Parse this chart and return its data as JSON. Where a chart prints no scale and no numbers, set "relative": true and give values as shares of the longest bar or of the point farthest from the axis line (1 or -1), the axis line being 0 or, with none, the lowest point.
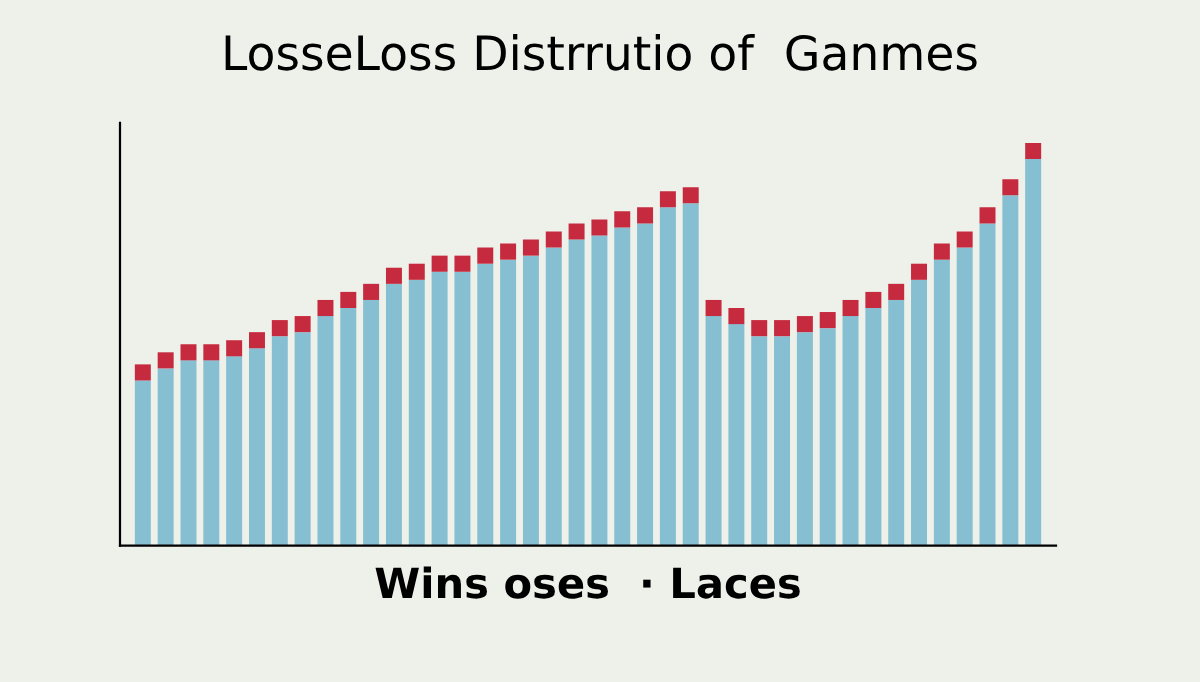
{
  "chart_data": {
    "type": "bar",
    "title": "LosseLoss Distrrutio of  Ganmes",
    "xlabel": "Wins oses  · Laces",
    "relative": true,
    "stacked": true,
    "categories": [
      null,
      null,
      null,
      null,
      null,
      null,
      null,
      null,
      null,
      null,
      null,
      null,
      null,
      null,
      null,
      null,
      null,
      null,
      null,
      null,
      null,
      null,
      null,
      null,
      null,
      null,
      null,
      null,
      null,
      null,
      null,
      null,
      null,
      null,
      null,
      null,
      null,
      null,
      null,
      null
    ],
    "series": [
      {
        "color": "#86bfd2",
        "values": [
          0.41,
          0.44,
          0.46,
          0.46,
          0.47,
          0.49,
          0.52,
          0.53,
          0.57,
          0.59,
          0.61,
          0.65,
          0.66,
          0.68,
          0.68,
          0.7,
          0.71,
          0.72,
          0.74,
          0.76,
          0.77,
          0.79,
          0.8,
          0.84,
          0.85,
          0.57,
          0.55,
          0.52,
          0.52,
          0.53,
          0.54,
          0.57,
          0.59,
          0.61,
          0.66,
          0.71,
          0.74,
          0.8,
          0.87,
          0.96
        ]
      },
      {
        "color": "#c62a3e",
        "values": [
          0.04,
          0.04,
          0.04,
          0.04,
          0.04,
          0.04,
          0.04,
          0.04,
          0.04,
          0.04,
          0.04,
          0.04,
          0.04,
          0.04,
          0.04,
          0.04,
          0.04,
          0.04,
          0.04,
          0.04,
          0.04,
          0.04,
          0.04,
          0.04,
          0.04,
          0.04,
          0.04,
          0.04,
          0.04,
          0.04,
          0.04,
          0.04,
          0.04,
          0.04,
          0.04,
          0.04,
          0.04,
          0.04,
          0.04,
          0.04
        ]
      }
    ]
  }
}
